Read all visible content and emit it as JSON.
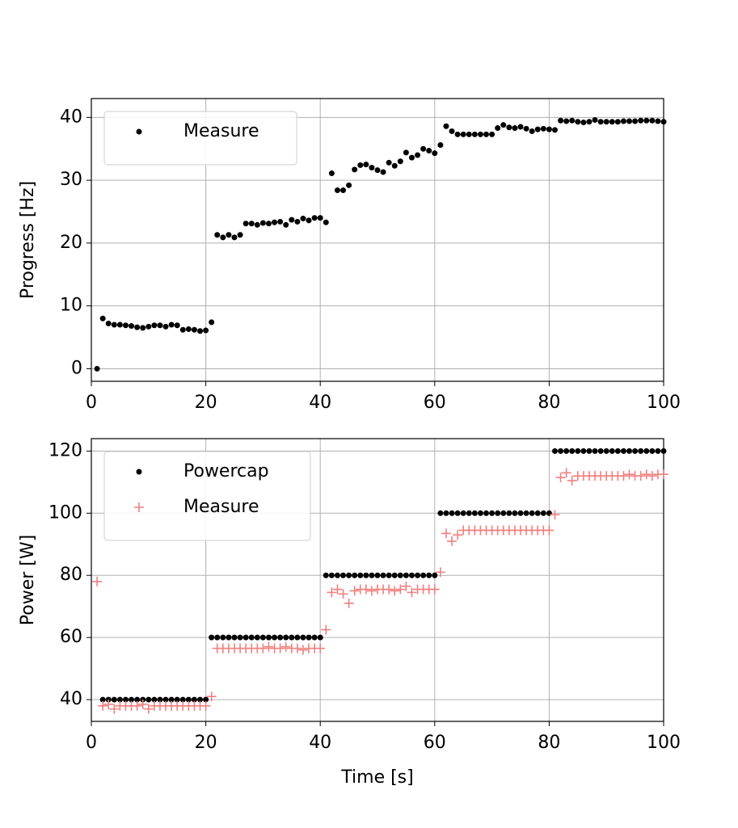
{
  "chart_data": [
    {
      "type": "scatter",
      "ylabel": "Progress [Hz]",
      "x": [
        1,
        2,
        3,
        4,
        5,
        6,
        7,
        8,
        9,
        10,
        11,
        12,
        13,
        14,
        15,
        16,
        17,
        18,
        19,
        20,
        21,
        22,
        23,
        24,
        25,
        26,
        27,
        28,
        29,
        30,
        31,
        32,
        33,
        34,
        35,
        36,
        37,
        38,
        39,
        40,
        41,
        42,
        43,
        44,
        45,
        46,
        47,
        48,
        49,
        50,
        51,
        52,
        53,
        54,
        55,
        56,
        57,
        58,
        59,
        60,
        61,
        62,
        63,
        64,
        65,
        66,
        67,
        68,
        69,
        70,
        71,
        72,
        73,
        74,
        75,
        76,
        77,
        78,
        79,
        80,
        81,
        82,
        83,
        84,
        85,
        86,
        87,
        88,
        89,
        90,
        91,
        92,
        93,
        94,
        95,
        96,
        97,
        98,
        99,
        100
      ],
      "series": [
        {
          "name": "Measure",
          "color": "#000000",
          "marker": "dot",
          "values": [
            0,
            8.0,
            7.2,
            7.0,
            7.0,
            6.9,
            6.8,
            6.6,
            6.5,
            6.7,
            6.9,
            6.9,
            6.7,
            7.0,
            6.9,
            6.2,
            6.3,
            6.2,
            6.0,
            6.1,
            7.4,
            21.3,
            20.9,
            21.3,
            20.9,
            21.3,
            23.1,
            23.1,
            22.9,
            23.2,
            23.1,
            23.3,
            23.4,
            22.9,
            23.7,
            23.4,
            23.9,
            23.6,
            24.0,
            24.0,
            23.3,
            31.1,
            28.4,
            28.4,
            29.2,
            31.7,
            32.4,
            32.5,
            32.0,
            31.6,
            31.3,
            32.8,
            32.3,
            33.0,
            34.4,
            33.6,
            34.0,
            35.0,
            34.7,
            34.3,
            35.6,
            38.6,
            37.8,
            37.3,
            37.3,
            37.3,
            37.3,
            37.3,
            37.3,
            37.3,
            38.3,
            38.8,
            38.4,
            38.3,
            38.5,
            38.2,
            37.8,
            38.1,
            38.2,
            38.1,
            38.0,
            39.5,
            39.4,
            39.5,
            39.3,
            39.2,
            39.3,
            39.6,
            39.3,
            39.3,
            39.3,
            39.3,
            39.4,
            39.4,
            39.4,
            39.5,
            39.5,
            39.5,
            39.4,
            39.3
          ]
        }
      ],
      "xlim": [
        0,
        100
      ],
      "xticks": [
        0,
        20,
        40,
        60,
        80,
        100
      ],
      "ylim": [
        -2,
        43
      ],
      "yticks": [
        0,
        10,
        20,
        30,
        40
      ],
      "grid": true,
      "legend": "upper-left"
    },
    {
      "type": "scatter",
      "ylabel": "Power [W]",
      "xlabel": "Time [s]",
      "x": [
        1,
        2,
        3,
        4,
        5,
        6,
        7,
        8,
        9,
        10,
        11,
        12,
        13,
        14,
        15,
        16,
        17,
        18,
        19,
        20,
        21,
        22,
        23,
        24,
        25,
        26,
        27,
        28,
        29,
        30,
        31,
        32,
        33,
        34,
        35,
        36,
        37,
        38,
        39,
        40,
        41,
        42,
        43,
        44,
        45,
        46,
        47,
        48,
        49,
        50,
        51,
        52,
        53,
        54,
        55,
        56,
        57,
        58,
        59,
        60,
        61,
        62,
        63,
        64,
        65,
        66,
        67,
        68,
        69,
        70,
        71,
        72,
        73,
        74,
        75,
        76,
        77,
        78,
        79,
        80,
        81,
        82,
        83,
        84,
        85,
        86,
        87,
        88,
        89,
        90,
        91,
        92,
        93,
        94,
        95,
        96,
        97,
        98,
        99,
        100
      ],
      "series": [
        {
          "name": "Powercap",
          "color": "#000000",
          "marker": "dot",
          "values": [
            null,
            40,
            40,
            40,
            40,
            40,
            40,
            40,
            40,
            40,
            40,
            40,
            40,
            40,
            40,
            40,
            40,
            40,
            40,
            40,
            60,
            60,
            60,
            60,
            60,
            60,
            60,
            60,
            60,
            60,
            60,
            60,
            60,
            60,
            60,
            60,
            60,
            60,
            60,
            60,
            80,
            80,
            80,
            80,
            80,
            80,
            80,
            80,
            80,
            80,
            80,
            80,
            80,
            80,
            80,
            80,
            80,
            80,
            80,
            80,
            100,
            100,
            100,
            100,
            100,
            100,
            100,
            100,
            100,
            100,
            100,
            100,
            100,
            100,
            100,
            100,
            100,
            100,
            100,
            100,
            120,
            120,
            120,
            120,
            120,
            120,
            120,
            120,
            120,
            120,
            120,
            120,
            120,
            120,
            120,
            120,
            120,
            120,
            120,
            120
          ]
        },
        {
          "name": "Measure",
          "color": "#f08080",
          "marker": "plus",
          "values": [
            78,
            38,
            38.5,
            37,
            38,
            38,
            38,
            38,
            38.5,
            37,
            38,
            38,
            38,
            38,
            38,
            38,
            38,
            38,
            38,
            38,
            41,
            56.5,
            56.5,
            56.5,
            56.5,
            56.5,
            56.5,
            56.5,
            56.5,
            56.5,
            57,
            56.5,
            56.5,
            57,
            56.5,
            56.5,
            56,
            56.5,
            56.5,
            56.5,
            62.5,
            74.5,
            75.5,
            74,
            71,
            75,
            75.5,
            75.5,
            75,
            75.5,
            75.5,
            75.5,
            75,
            75.5,
            76.5,
            74.5,
            75.5,
            75.5,
            75.5,
            75.5,
            81,
            93.5,
            91,
            93,
            94.5,
            94.5,
            94.5,
            94.5,
            94.5,
            94.5,
            94.5,
            94.5,
            94.5,
            94.5,
            94.5,
            94.5,
            94.5,
            94.5,
            94.5,
            94.5,
            99.5,
            111.5,
            113,
            110.5,
            112,
            112,
            112,
            112,
            112,
            112,
            112,
            112,
            112,
            112.5,
            112,
            112,
            112.5,
            112,
            112.5,
            112.5
          ]
        }
      ],
      "xlim": [
        0,
        100
      ],
      "xticks": [
        0,
        20,
        40,
        60,
        80,
        100
      ],
      "ylim": [
        33,
        124
      ],
      "yticks": [
        40,
        60,
        80,
        100,
        120
      ],
      "grid": true,
      "legend": "upper-left"
    }
  ]
}
